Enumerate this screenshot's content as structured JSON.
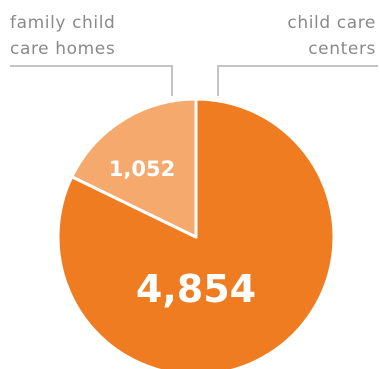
{
  "chart_data": {
    "type": "pie",
    "title": "",
    "slices": [
      {
        "name_lines": [
          "child care",
          "centers"
        ],
        "value": 4854,
        "value_label": "4,854",
        "color": "#f07c22"
      },
      {
        "name_lines": [
          "family child",
          "care homes"
        ],
        "value": 1052,
        "value_label": "1,052",
        "color": "#f5a96d"
      }
    ],
    "start_direction": "12 o'clock",
    "order": "clockwise, first slice first",
    "slice_border_color": "#ffffff",
    "leader_line_color": "#c4c4c4",
    "legend_placement": "top"
  }
}
